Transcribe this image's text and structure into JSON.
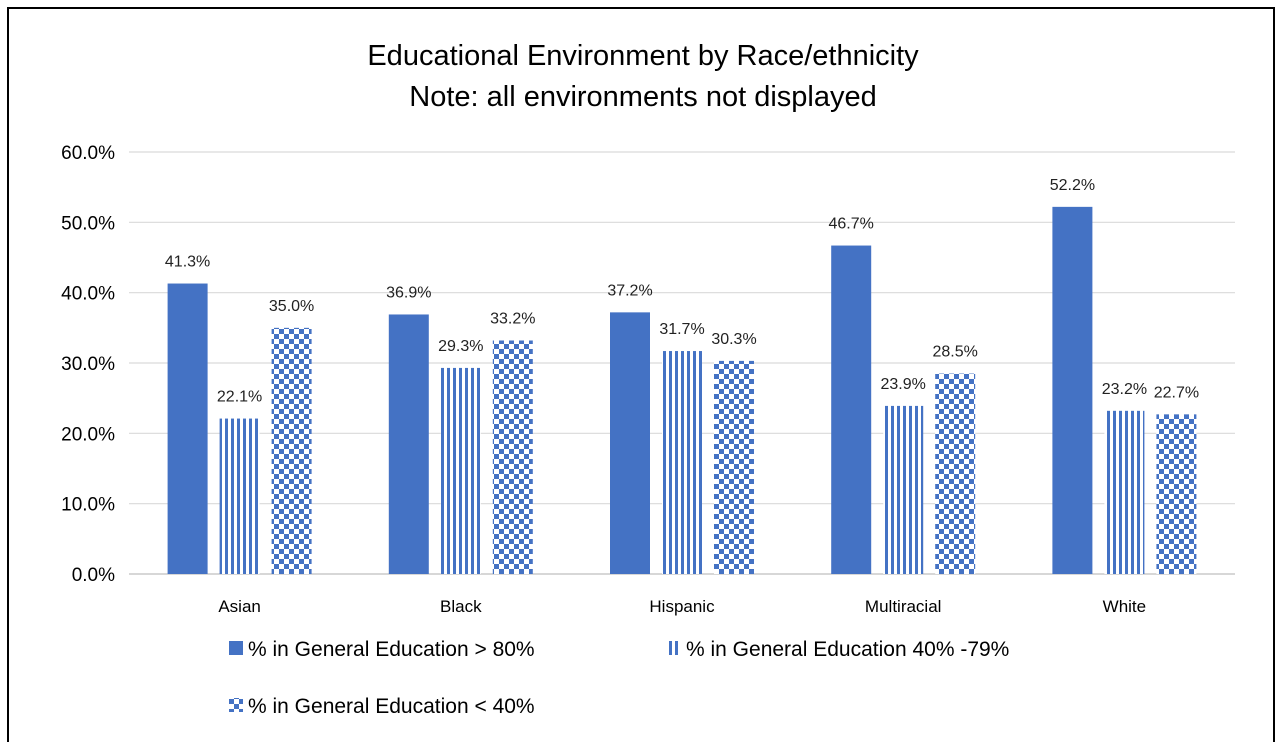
{
  "chart_data": {
    "type": "bar",
    "title": "Educational Environment by Race/ethnicity",
    "subtitle": "Note: all environments not displayed",
    "categories": [
      "Asian",
      "Black",
      "Hispanic",
      "Multiracial",
      "White"
    ],
    "series": [
      {
        "name": "% in General Education > 80%",
        "values": [
          41.3,
          36.9,
          37.2,
          46.7,
          52.2
        ],
        "labels": [
          "41.3%",
          "36.9%",
          "37.2%",
          "46.7%",
          "52.2%"
        ],
        "pattern": "solid"
      },
      {
        "name": "% in General Education 40% -79%",
        "values": [
          22.1,
          29.3,
          31.7,
          23.9,
          23.2
        ],
        "labels": [
          "22.1%",
          "29.3%",
          "31.7%",
          "23.9%",
          "23.2%"
        ],
        "pattern": "vertical-stripes"
      },
      {
        "name": "% in General Education < 40%",
        "values": [
          35.0,
          33.2,
          30.3,
          28.5,
          22.7
        ],
        "labels": [
          "35.0%",
          "33.2%",
          "30.3%",
          "28.5%",
          "22.7%"
        ],
        "pattern": "checkerboard"
      }
    ],
    "yticks": [
      "0.0%",
      "10.0%",
      "20.0%",
      "30.0%",
      "40.0%",
      "50.0%",
      "60.0%"
    ],
    "ylim": [
      0,
      60
    ],
    "grid": true,
    "legend_position": "bottom",
    "colors": {
      "bar": "#4472C4",
      "grid": "#D9D9D9",
      "axis": "#BFBFBF"
    }
  }
}
